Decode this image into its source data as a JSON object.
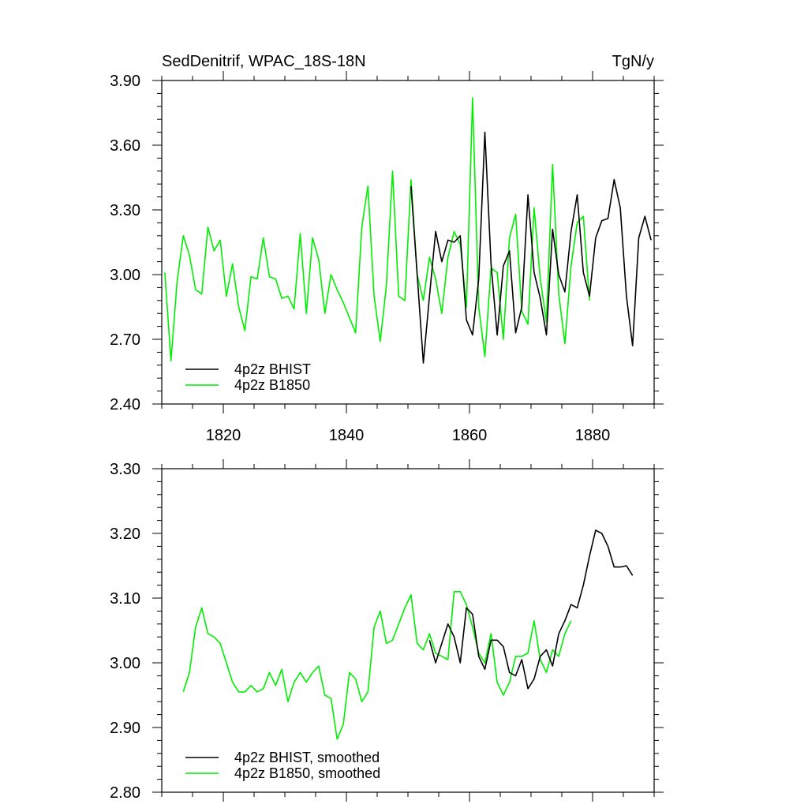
{
  "header": {
    "title": "SedDenitrif, WPAC_18S-18N",
    "units": "TgN/y"
  },
  "colors": {
    "bhist": "#000000",
    "b1850": "#00ee00",
    "axis": "#000000"
  },
  "chart_data": [
    {
      "type": "line",
      "title": "SedDenitrif, WPAC_18S-18N",
      "units": "TgN/y",
      "xlim": [
        1810,
        1890
      ],
      "ylim": [
        2.4,
        3.9
      ],
      "yticks": [
        "2.40",
        "2.70",
        "3.00",
        "3.30",
        "3.60",
        "3.90"
      ],
      "ytick_values": [
        2.4,
        2.7,
        3.0,
        3.3,
        3.6,
        3.9
      ],
      "xticks": [
        "1820",
        "1840",
        "1860",
        "1880"
      ],
      "xtick_values": [
        1820,
        1840,
        1860,
        1880
      ],
      "legend_position": "bottom-left",
      "series": [
        {
          "name": "4p2z BHIST",
          "color": "#000000",
          "x": [
            1850.5,
            1851.5,
            1852.5,
            1853.5,
            1854.5,
            1855.5,
            1856.5,
            1857.5,
            1858.5,
            1859.5,
            1860.5,
            1861.5,
            1862.5,
            1863.5,
            1864.5,
            1865.5,
            1866.5,
            1867.5,
            1868.5,
            1869.5,
            1870.5,
            1871.5,
            1872.5,
            1873.5,
            1874.5,
            1875.5,
            1876.5,
            1877.5,
            1878.5,
            1879.5,
            1880.5,
            1881.5,
            1882.5,
            1883.5,
            1884.5,
            1885.5,
            1886.5,
            1887.5,
            1888.5,
            1889.5
          ],
          "y": [
            3.41,
            3.0,
            2.59,
            2.9,
            3.2,
            3.06,
            3.16,
            3.15,
            3.18,
            2.79,
            2.72,
            2.98,
            3.66,
            3.05,
            2.72,
            3.04,
            3.11,
            2.73,
            2.85,
            3.37,
            3.01,
            2.89,
            2.72,
            3.21,
            3.0,
            2.92,
            3.2,
            3.37,
            3.01,
            2.9,
            3.17,
            3.25,
            3.26,
            3.44,
            3.31,
            2.9,
            2.67,
            3.17,
            3.27,
            3.16
          ]
        },
        {
          "name": "4p2z B1850",
          "color": "#00ee00",
          "x": [
            1810.5,
            1811.5,
            1812.5,
            1813.5,
            1814.5,
            1815.5,
            1816.5,
            1817.5,
            1818.5,
            1819.5,
            1820.5,
            1821.5,
            1822.5,
            1823.5,
            1824.5,
            1825.5,
            1826.5,
            1827.5,
            1828.5,
            1829.5,
            1830.5,
            1831.5,
            1832.5,
            1833.5,
            1834.5,
            1835.5,
            1836.5,
            1837.5,
            1838.5,
            1839.5,
            1840.5,
            1841.5,
            1842.5,
            1843.5,
            1844.5,
            1845.5,
            1846.5,
            1847.5,
            1848.5,
            1849.5,
            1850.5,
            1851.5,
            1852.5,
            1853.5,
            1854.5,
            1855.5,
            1856.5,
            1857.5,
            1858.5,
            1859.5,
            1860.5,
            1861.5,
            1862.5,
            1863.5,
            1864.5,
            1865.5,
            1866.5,
            1867.5,
            1868.5,
            1869.5,
            1870.5,
            1871.5,
            1872.5,
            1873.5,
            1874.5,
            1875.5,
            1876.5,
            1877.5,
            1878.5,
            1879.5
          ],
          "y": [
            3.01,
            2.6,
            2.97,
            3.18,
            3.09,
            2.93,
            2.91,
            3.22,
            3.11,
            3.16,
            2.9,
            3.05,
            2.85,
            2.74,
            2.99,
            2.98,
            3.17,
            2.99,
            2.98,
            2.89,
            2.9,
            2.84,
            3.19,
            2.82,
            3.17,
            3.07,
            2.82,
            3.0,
            2.93,
            2.87,
            2.8,
            2.73,
            3.22,
            3.41,
            2.9,
            2.69,
            2.95,
            3.48,
            2.9,
            2.88,
            3.44,
            3.0,
            2.88,
            3.08,
            2.98,
            2.82,
            3.08,
            3.2,
            3.14,
            2.85,
            3.82,
            2.85,
            2.62,
            3.03,
            3.01,
            2.7,
            3.17,
            3.28,
            2.83,
            2.77,
            3.31,
            2.98,
            2.78,
            3.51,
            2.91,
            2.68,
            3.04,
            3.24,
            3.27,
            2.88
          ]
        }
      ]
    },
    {
      "type": "line",
      "xlim": [
        1810,
        1890
      ],
      "ylim": [
        2.8,
        3.3
      ],
      "yticks": [
        "2.80",
        "2.90",
        "3.00",
        "3.10",
        "3.20",
        "3.30"
      ],
      "ytick_values": [
        2.8,
        2.9,
        3.0,
        3.1,
        3.2,
        3.3
      ],
      "xtick_values": [
        1820,
        1840,
        1860,
        1880
      ],
      "legend_position": "bottom-left",
      "series": [
        {
          "name": "4p2z BHIST, smoothed",
          "color": "#000000",
          "x": [
            1853.5,
            1854.5,
            1855.5,
            1856.5,
            1857.5,
            1858.5,
            1859.5,
            1860.5,
            1861.5,
            1862.5,
            1863.5,
            1864.5,
            1865.5,
            1866.5,
            1867.5,
            1868.5,
            1869.5,
            1870.5,
            1871.5,
            1872.5,
            1873.5,
            1874.5,
            1875.5,
            1876.5,
            1877.5,
            1878.5,
            1879.5,
            1880.5,
            1881.5,
            1882.5,
            1883.5,
            1884.5,
            1885.5,
            1886.5
          ],
          "y": [
            3.035,
            3.0,
            3.03,
            3.06,
            3.04,
            3.0,
            3.085,
            3.075,
            3.01,
            2.99,
            3.035,
            3.035,
            3.025,
            2.985,
            2.98,
            3.005,
            2.96,
            2.975,
            3.01,
            3.02,
            2.995,
            3.045,
            3.065,
            3.09,
            3.085,
            3.12,
            3.165,
            3.205,
            3.2,
            3.18,
            3.148,
            3.148,
            3.15,
            3.135
          ]
        },
        {
          "name": "4p2z B1850, smoothed",
          "color": "#00ee00",
          "x": [
            1813.5,
            1814.5,
            1815.5,
            1816.5,
            1817.5,
            1818.5,
            1819.5,
            1820.5,
            1821.5,
            1822.5,
            1823.5,
            1824.5,
            1825.5,
            1826.5,
            1827.5,
            1828.5,
            1829.5,
            1830.5,
            1831.5,
            1832.5,
            1833.5,
            1834.5,
            1835.5,
            1836.5,
            1837.5,
            1838.5,
            1839.5,
            1840.5,
            1841.5,
            1842.5,
            1843.5,
            1844.5,
            1845.5,
            1846.5,
            1847.5,
            1848.5,
            1849.5,
            1850.5,
            1851.5,
            1852.5,
            1853.5,
            1854.5,
            1855.5,
            1856.5,
            1857.5,
            1858.5,
            1859.5,
            1860.5,
            1861.5,
            1862.5,
            1863.5,
            1864.5,
            1865.5,
            1866.5,
            1867.5,
            1868.5,
            1869.5,
            1870.5,
            1871.5,
            1872.5,
            1873.5,
            1874.5,
            1875.5,
            1876.5
          ],
          "y": [
            2.955,
            2.985,
            3.055,
            3.085,
            3.045,
            3.04,
            3.03,
            3.0,
            2.97,
            2.955,
            2.955,
            2.965,
            2.955,
            2.96,
            2.985,
            2.965,
            2.99,
            2.94,
            2.97,
            2.985,
            2.97,
            2.985,
            2.995,
            2.95,
            2.945,
            2.882,
            2.905,
            2.985,
            2.975,
            2.94,
            2.955,
            3.055,
            3.08,
            3.03,
            3.035,
            3.06,
            3.085,
            3.105,
            3.03,
            3.02,
            3.045,
            3.015,
            3.01,
            3.005,
            3.11,
            3.11,
            3.09,
            3.055,
            3.015,
            3.0,
            3.045,
            2.97,
            2.95,
            2.97,
            3.01,
            3.01,
            3.015,
            3.065,
            3.005,
            2.985,
            3.02,
            3.01,
            3.045,
            3.065
          ]
        }
      ]
    }
  ]
}
